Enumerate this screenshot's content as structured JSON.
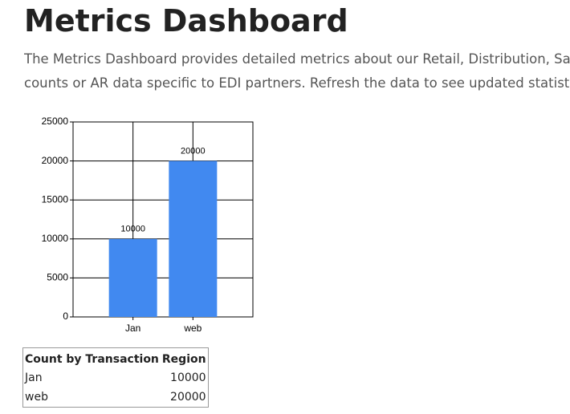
{
  "header": {
    "title": "Metrics Dashboard",
    "description": [
      "The Metrics Dashboard provides detailed metrics about our Retail, Distribution, Sa",
      "counts or AR data specific to EDI partners. Refresh the data to see updated statisti"
    ]
  },
  "chart_data": {
    "type": "bar",
    "categories": [
      "Jan",
      "web"
    ],
    "values": [
      10000,
      20000
    ],
    "color": "#4189f0",
    "ylim": [
      0,
      25000
    ],
    "yticks": [
      0,
      5000,
      10000,
      15000,
      20000,
      25000
    ],
    "grid": true
  },
  "table": {
    "columns": [
      "Count by Transaction",
      "Region"
    ],
    "rows": [
      [
        "Jan",
        10000
      ],
      [
        "web",
        20000
      ]
    ]
  }
}
